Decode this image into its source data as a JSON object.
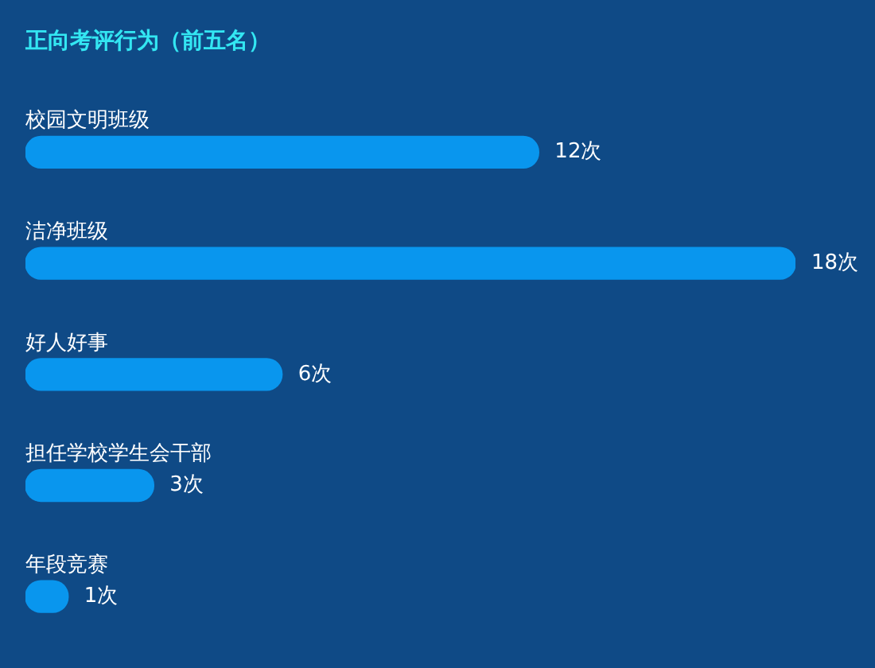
{
  "chart_data": {
    "type": "bar",
    "orientation": "horizontal",
    "title": "正向考评行为（前五名）",
    "categories": [
      "校园文明班级",
      "洁净班级",
      "好人好事",
      "担任学校学生会干部",
      "年段竞赛"
    ],
    "values": [
      12,
      18,
      6,
      3,
      1
    ],
    "color": "#0996ee",
    "value_labels": [
      "12次",
      "18次",
      "6次",
      "3次",
      "1次"
    ]
  }
}
